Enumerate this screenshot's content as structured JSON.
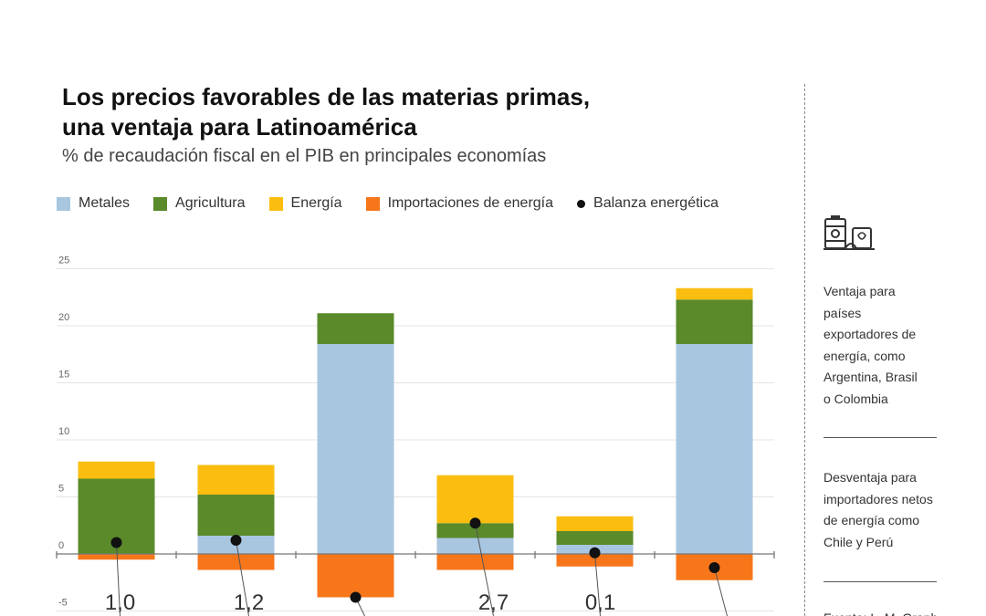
{
  "title_line1": "Los precios favorables de las materias primas,",
  "title_line2": "una ventaja para Latinoamérica",
  "subtitle": "% de recaudación fiscal en el PIB en principales economías",
  "legend": [
    {
      "label": "Metales",
      "color": "#a8c6e0",
      "kind": "square"
    },
    {
      "label": "Agricultura",
      "color": "#5a8a2a",
      "kind": "square"
    },
    {
      "label": "Energía",
      "color": "#fbbe10",
      "kind": "square"
    },
    {
      "label": "Importaciones de energía",
      "color": "#f7761a",
      "kind": "square"
    },
    {
      "label": "Balanza energética",
      "color": "#111111",
      "kind": "dot"
    }
  ],
  "sidebar": {
    "note1": "Ventaja para países exportadores de energía, como Argentina, Brasil o Colombia",
    "note2": "Desventaja para importadores netos de energía como Chile y Perú",
    "note3": "Fuente: L. M. Graphics"
  },
  "chart_data": {
    "type": "bar",
    "stacked": true,
    "categories": [
      "",
      "",
      "",
      "",
      "",
      ""
    ],
    "series": [
      {
        "name": "Metales",
        "color": "#a8c6e0",
        "values": [
          0.0,
          1.6,
          18.4,
          1.4,
          0.8,
          18.4
        ]
      },
      {
        "name": "Agricultura",
        "color": "#5a8a2a",
        "values": [
          6.6,
          3.6,
          2.7,
          1.3,
          1.2,
          3.9
        ]
      },
      {
        "name": "Energía",
        "color": "#fbbe10",
        "values": [
          1.5,
          2.6,
          0.0,
          4.2,
          1.3,
          1.0
        ]
      },
      {
        "name": "Importaciones de energía",
        "color": "#f7761a",
        "values": [
          -0.5,
          -1.4,
          -3.8,
          -1.4,
          -1.1,
          -2.3
        ]
      }
    ],
    "balance": {
      "name": "Balanza energética",
      "color": "#111111",
      "values": [
        1.0,
        1.2,
        -3.8,
        2.7,
        0.1,
        -1.2
      ]
    },
    "data_labels": [
      "1,0",
      "1,2",
      "",
      "2,7",
      "0,1",
      ""
    ],
    "ylim": [
      -5,
      25
    ],
    "yticks": [
      -5,
      0,
      5,
      10,
      15,
      20,
      25
    ],
    "grid": true
  }
}
